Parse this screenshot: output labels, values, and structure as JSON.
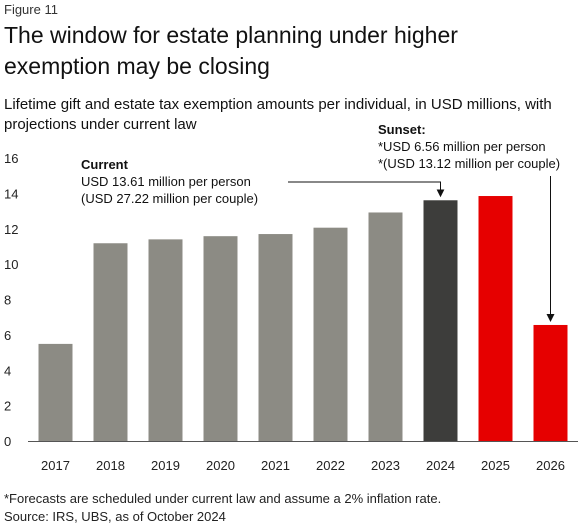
{
  "figure_label": "Figure 11",
  "title": "The window for estate planning under higher exemption may be closing",
  "subtitle": "Lifetime gift and estate tax exemption amounts per individual, in USD millions, with projections under current law",
  "footnote": "*Forecasts are scheduled under current law and assume a 2% inflation rate.",
  "source": "Source: IRS, UBS, as of October 2024",
  "colors": {
    "historical": "#8c8b84",
    "current": "#3d3d3b",
    "projected": "#e60000",
    "axis": "#555555"
  },
  "chart_data": {
    "type": "bar",
    "categories": [
      "2017",
      "2018",
      "2019",
      "2020",
      "2021",
      "2022",
      "2023",
      "2024",
      "2025",
      "2026"
    ],
    "values": [
      5.49,
      11.18,
      11.4,
      11.58,
      11.7,
      12.06,
      12.92,
      13.61,
      13.85,
      6.56
    ],
    "bar_kinds": [
      "historical",
      "historical",
      "historical",
      "historical",
      "historical",
      "historical",
      "historical",
      "current",
      "projected",
      "projected"
    ],
    "ylim": [
      0,
      16
    ],
    "yticks": [
      0,
      2,
      4,
      6,
      8,
      10,
      12,
      14,
      16
    ],
    "grid": false,
    "annotations": {
      "current": {
        "title": "Current",
        "lines": [
          "USD 13.61 million per person",
          "(USD 27.22 million per couple)"
        ],
        "points_to": "2024"
      },
      "sunset": {
        "title": "Sunset:",
        "lines": [
          "*USD 6.56 million per person",
          "*(USD 13.12 million per couple)"
        ],
        "points_to": "2026"
      }
    }
  }
}
